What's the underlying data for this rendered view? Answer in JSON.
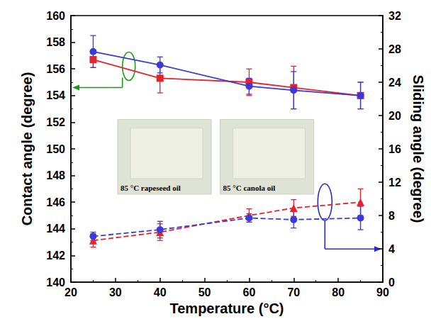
{
  "chart_data": {
    "type": "line",
    "x_label": "Temperature (°C)",
    "y_label": "Contact angle (degree)",
    "y2_label": "Sliding angle (degree)",
    "annotations": [
      "85 °C rapeseed oil",
      "85 °C canola oil"
    ],
    "x": [
      25,
      40,
      60,
      70,
      85
    ],
    "xlim": [
      20,
      90
    ],
    "xticks": [
      20,
      30,
      40,
      50,
      60,
      70,
      80,
      90
    ],
    "ylim": [
      140,
      160
    ],
    "yticks": [
      140,
      142,
      144,
      146,
      148,
      150,
      152,
      154,
      156,
      158,
      160
    ],
    "y2lim": [
      0,
      32
    ],
    "y2ticks": [
      0,
      4,
      8,
      12,
      16,
      20,
      24,
      28,
      32
    ],
    "grid": false,
    "series": [
      {
        "color": "#e8212a",
        "marker": "square",
        "line_style": "solid",
        "values": [
          156.7,
          155.3,
          155.0,
          154.6,
          154.0
        ],
        "errors": [
          0.6,
          1.1,
          1.0,
          1.6,
          1.0
        ]
      },
      {
        "color": "#3a3adb",
        "marker": "circle",
        "line_style": "solid",
        "values": [
          157.3,
          156.3,
          154.7,
          154.4,
          154.0
        ],
        "errors": [
          1.2,
          0.6,
          0.6,
          1.4,
          1.0
        ]
      },
      {
        "color": "#e8212a",
        "marker": "triangle",
        "line_style": "dashed",
        "axis": "y2",
        "values": [
          5.0,
          6.0,
          8.0,
          8.9,
          9.6
        ],
        "errors": [
          0.8,
          1.0,
          0.8,
          1.0,
          1.6
        ]
      },
      {
        "color": "#3a3adb",
        "marker": "circle",
        "line_style": "dashed",
        "axis": "y2",
        "values": [
          5.5,
          6.3,
          7.7,
          7.5,
          7.7
        ],
        "errors": [
          0.5,
          1.0,
          0.5,
          1.0,
          1.4
        ]
      }
    ]
  }
}
